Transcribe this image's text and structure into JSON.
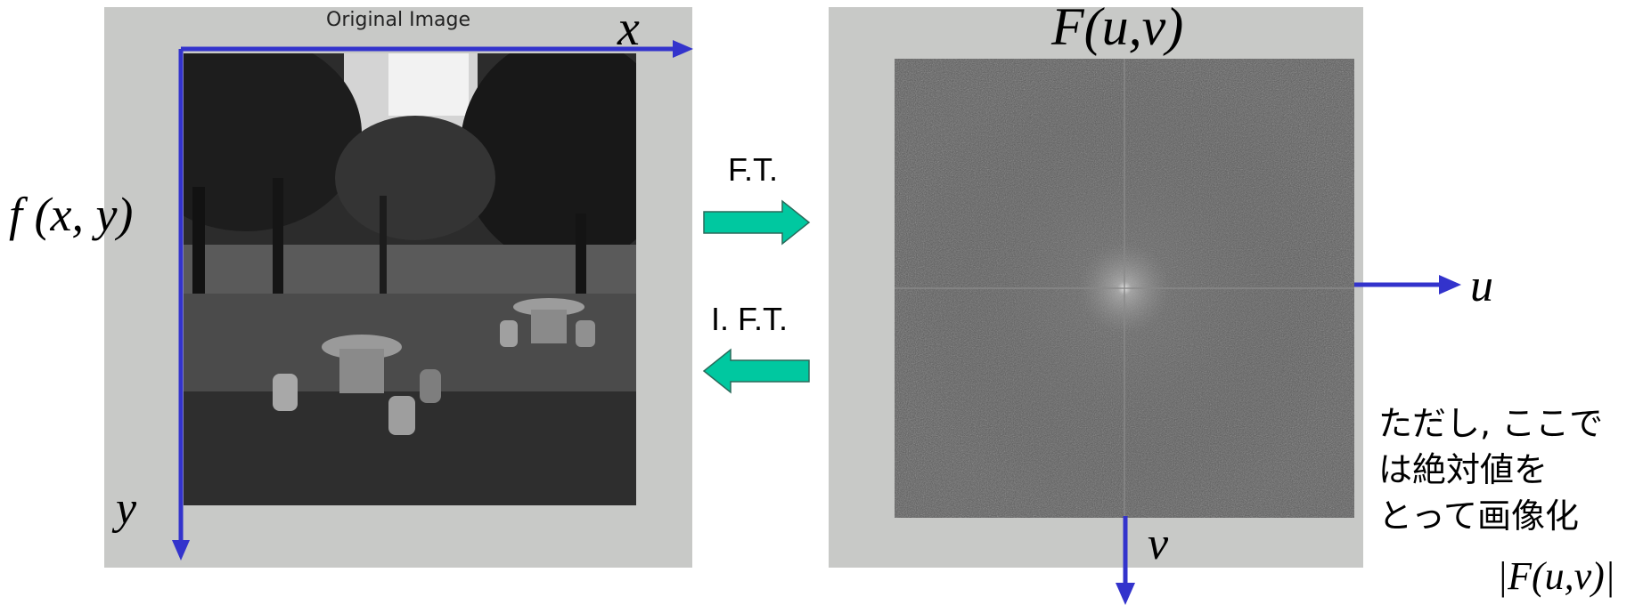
{
  "left": {
    "caption": "Original Image",
    "function_label": "f (x, y)",
    "axis_x": "x",
    "axis_y": "y"
  },
  "middle": {
    "forward_label": "F.T.",
    "inverse_label": "I. F.T.",
    "arrow_color": "#00c8a0"
  },
  "right": {
    "title": "F(u,v)",
    "axis_u": "u",
    "axis_v": "v"
  },
  "note": {
    "lines": [
      "ただし, ここで",
      "は絶対値を",
      "とって画像化"
    ],
    "abs_label": "|F(u,v)|"
  },
  "colors": {
    "axis": "#3333cc",
    "panel": "#c8c9c7"
  }
}
